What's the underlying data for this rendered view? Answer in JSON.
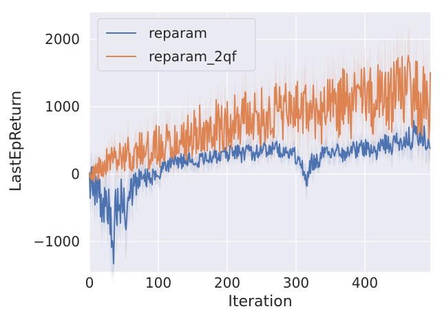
{
  "chart_data": {
    "type": "line",
    "xlabel": "Iteration",
    "ylabel": "LastEpReturn",
    "xlim": [
      0,
      495
    ],
    "ylim": [
      -1450,
      2400
    ],
    "xticks": [
      0,
      100,
      200,
      300,
      400
    ],
    "xtick_labels": [
      "0",
      "100",
      "200",
      "300",
      "400"
    ],
    "yticks": [
      -1000,
      0,
      1000,
      2000
    ],
    "ytick_labels": [
      "−1000",
      "0",
      "1000",
      "2000"
    ],
    "grid": true,
    "background": "#eaeaf2",
    "legend": {
      "position": "top-left",
      "entries": [
        "reparam",
        "reparam_2qf"
      ]
    },
    "series": [
      {
        "name": "reparam",
        "color": "#4c72b0",
        "x": [
          0,
          10,
          20,
          30,
          34,
          40,
          50,
          55,
          60,
          70,
          80,
          90,
          100,
          110,
          120,
          130,
          140,
          150,
          160,
          170,
          180,
          190,
          200,
          210,
          220,
          230,
          240,
          250,
          260,
          270,
          280,
          290,
          300,
          310,
          315,
          320,
          330,
          340,
          350,
          360,
          370,
          380,
          390,
          400,
          410,
          420,
          430,
          440,
          450,
          460,
          470,
          480,
          490,
          495
        ],
        "y": [
          -100,
          -200,
          -400,
          -650,
          -1000,
          -400,
          -300,
          -700,
          -200,
          -100,
          0,
          -50,
          50,
          100,
          150,
          200,
          180,
          250,
          200,
          280,
          250,
          300,
          300,
          350,
          280,
          350,
          300,
          380,
          350,
          400,
          300,
          350,
          250,
          100,
          -50,
          150,
          200,
          300,
          250,
          350,
          300,
          400,
          350,
          400,
          300,
          350,
          450,
          400,
          500,
          450,
          600,
          550,
          500,
          450
        ],
        "band": [
          300,
          350,
          400,
          450,
          500,
          450,
          400,
          450,
          350,
          250,
          200,
          180,
          150,
          140,
          130,
          130,
          130,
          130,
          130,
          130,
          130,
          130,
          130,
          130,
          130,
          130,
          130,
          130,
          130,
          130,
          130,
          130,
          150,
          180,
          200,
          180,
          150,
          150,
          150,
          150,
          150,
          150,
          150,
          150,
          150,
          150,
          180,
          180,
          200,
          200,
          220,
          220,
          220,
          220
        ]
      },
      {
        "name": "reparam_2qf",
        "color": "#dd8452",
        "x": [
          0,
          10,
          20,
          30,
          40,
          50,
          60,
          70,
          80,
          90,
          100,
          110,
          120,
          130,
          140,
          150,
          160,
          170,
          180,
          190,
          200,
          210,
          220,
          230,
          240,
          250,
          260,
          270,
          280,
          290,
          300,
          310,
          320,
          330,
          340,
          350,
          360,
          370,
          380,
          390,
          400,
          410,
          420,
          430,
          440,
          450,
          460,
          470,
          480,
          490,
          495
        ],
        "y": [
          0,
          50,
          150,
          200,
          250,
          280,
          300,
          350,
          330,
          400,
          400,
          450,
          500,
          550,
          500,
          600,
          700,
          650,
          750,
          700,
          750,
          800,
          850,
          800,
          900,
          850,
          850,
          950,
          900,
          900,
          1000,
          950,
          900,
          1000,
          850,
          950,
          1000,
          1100,
          1000,
          1050,
          1100,
          1050,
          1150,
          1200,
          1100,
          1300,
          1250,
          1200,
          1100,
          1150,
          1000
        ],
        "band": [
          100,
          150,
          200,
          220,
          250,
          250,
          250,
          250,
          280,
          280,
          300,
          300,
          300,
          300,
          320,
          320,
          350,
          350,
          350,
          350,
          380,
          380,
          380,
          380,
          400,
          400,
          400,
          400,
          400,
          400,
          420,
          420,
          420,
          420,
          450,
          450,
          450,
          450,
          450,
          450,
          480,
          480,
          480,
          480,
          500,
          500,
          500,
          500,
          500,
          500,
          500
        ]
      }
    ]
  }
}
